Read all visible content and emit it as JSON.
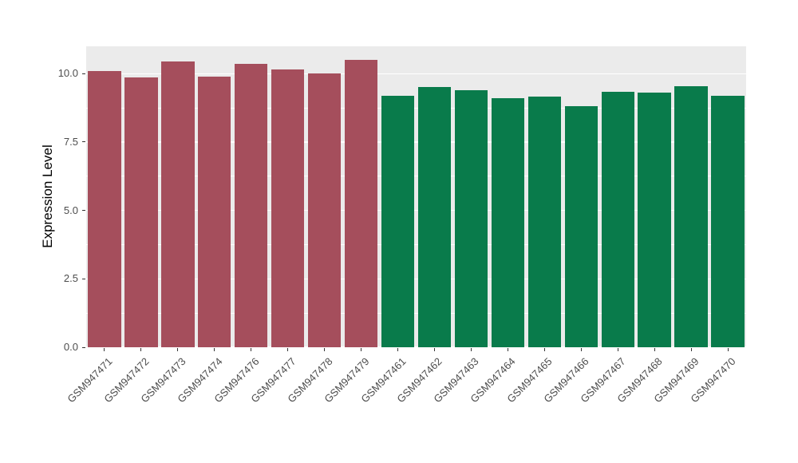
{
  "chart_data": {
    "type": "bar",
    "title": "",
    "xlabel": "",
    "ylabel": "Expression Level",
    "ylim": [
      0,
      11
    ],
    "yticks": [
      0,
      2.5,
      5,
      7.5,
      10
    ],
    "ytick_labels": [
      "0.0",
      "2.5",
      "5.0",
      "7.5",
      "10.0"
    ],
    "minor_gridlines": [
      1.25,
      3.75,
      6.25,
      8.75
    ],
    "grid": "on",
    "legend": "none",
    "panel_background": "#EBEBEB",
    "gridline_color": "#FFFFFF",
    "group_colors": {
      "group1": "#A54E5C",
      "group2": "#097B4B"
    },
    "categories": [
      "GSM947471",
      "GSM947472",
      "GSM947473",
      "GSM947474",
      "GSM947476",
      "GSM947477",
      "GSM947478",
      "GSM947479",
      "GSM947461",
      "GSM947462",
      "GSM947463",
      "GSM947464",
      "GSM947465",
      "GSM947466",
      "GSM947467",
      "GSM947468",
      "GSM947469",
      "GSM947470"
    ],
    "values": [
      10.1,
      9.85,
      10.45,
      9.9,
      10.35,
      10.15,
      10.0,
      10.5,
      9.2,
      9.5,
      9.4,
      9.1,
      9.15,
      8.8,
      9.35,
      9.3,
      9.55,
      9.2
    ],
    "colors": [
      "#A54E5C",
      "#A54E5C",
      "#A54E5C",
      "#A54E5C",
      "#A54E5C",
      "#A54E5C",
      "#A54E5C",
      "#A54E5C",
      "#097B4B",
      "#097B4B",
      "#097B4B",
      "#097B4B",
      "#097B4B",
      "#097B4B",
      "#097B4B",
      "#097B4B",
      "#097B4B",
      "#097B4B"
    ]
  }
}
